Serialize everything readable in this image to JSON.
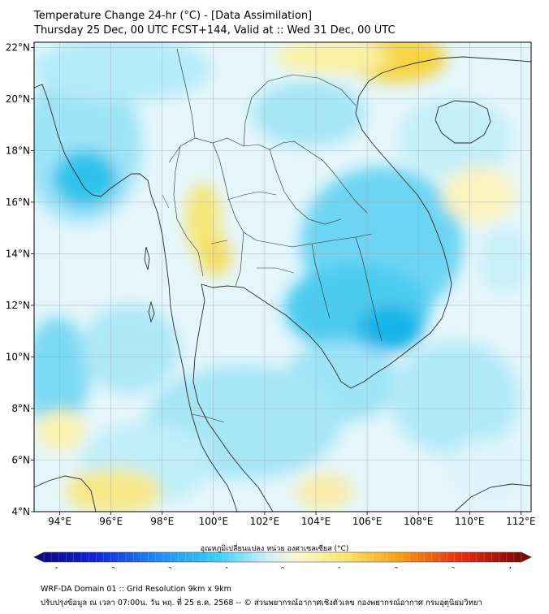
{
  "header": {
    "title": "Temperature Change 24-hr (°C) - [Data Assimilation]",
    "subtitle": "Thursday 25 Dec, 00 UTC FCST+144, Valid at :: Wed 31 Dec, 00 UTC"
  },
  "map": {
    "lon_range": [
      93,
      112.4
    ],
    "lat_range": [
      4,
      22.2
    ],
    "lon_ticks": [
      {
        "v": 94,
        "label": "94°E"
      },
      {
        "v": 96,
        "label": "96°E"
      },
      {
        "v": 98,
        "label": "98°E"
      },
      {
        "v": 100,
        "label": "100°E"
      },
      {
        "v": 102,
        "label": "102°E"
      },
      {
        "v": 104,
        "label": "104°E"
      },
      {
        "v": 106,
        "label": "106°E"
      },
      {
        "v": 108,
        "label": "108°E"
      },
      {
        "v": 110,
        "label": "110°E"
      },
      {
        "v": 112,
        "label": "112°E"
      }
    ],
    "lat_ticks": [
      {
        "v": 22,
        "label": "22°N"
      },
      {
        "v": 20,
        "label": "20°N"
      },
      {
        "v": 18,
        "label": "18°N"
      },
      {
        "v": 16,
        "label": "16°N"
      },
      {
        "v": 14,
        "label": "14°N"
      },
      {
        "v": 12,
        "label": "12°N"
      },
      {
        "v": 10,
        "label": "10°N"
      },
      {
        "v": 8,
        "label": "8°N"
      },
      {
        "v": 6,
        "label": "6°N"
      },
      {
        "v": 4,
        "label": "4°N"
      }
    ]
  },
  "colorbar": {
    "label": "อุณหภูมิเปลี่ยนแปลง หน่วย องศาเซลเซียส (°C)",
    "min": -4,
    "max": 4,
    "ticks": [
      "-4",
      "-3",
      "-2",
      "-1",
      "0",
      "1",
      "2",
      "3",
      "4"
    ]
  },
  "footer": {
    "line1": "WRF-DA Domain 01 :: Grid Resolution 9km x 9km",
    "line2": "ปรับปรุงข้อมูล ณ เวลา 07:00น. วัน พฤ. ที่ 25 ธ.ค. 2568 -- © ส่วนพยากรณ์อากาศเชิงตัวเลข กองพยากรณ์อากาศ กรมอุตุนิยมวิทยา"
  },
  "colors": {
    "cold_strong": "#14b4e8",
    "cold": "#5fd2f2",
    "cool": "#bdeef9",
    "neutral": "#e6f7fc",
    "warm": "#fbf2a8",
    "hot": "#f5cc33",
    "coast": "#2a2a2a"
  }
}
